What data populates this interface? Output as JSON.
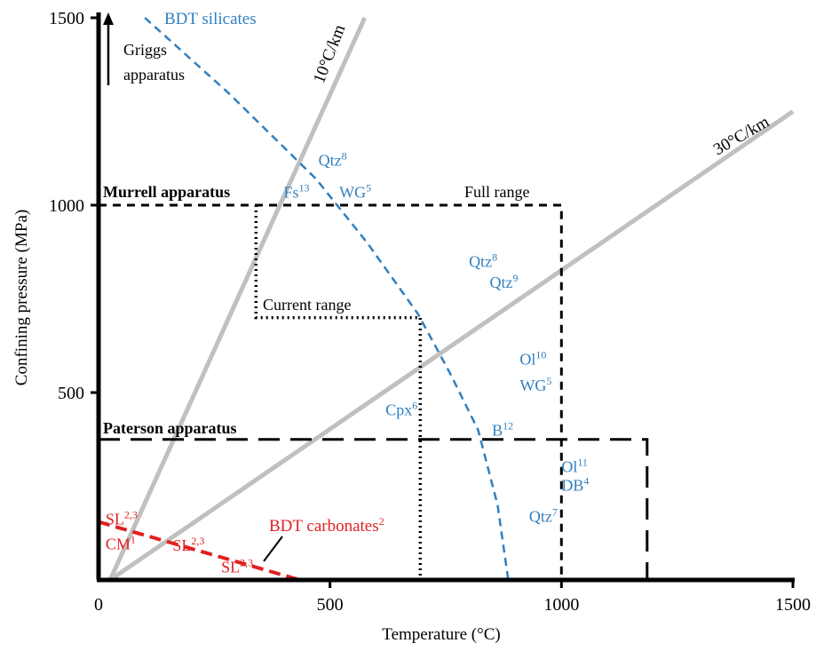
{
  "chart_data": {
    "type": "line",
    "xlabel": "Temperature (°C)",
    "ylabel": "Confining pressure (MPa)",
    "xlim": [
      0,
      1500
    ],
    "ylim": [
      0,
      1500
    ],
    "x_ticks": [
      "0",
      "500",
      "1000",
      "1500"
    ],
    "y_ticks": [
      "500",
      "1000",
      "1500"
    ],
    "colors": {
      "geotherm": "#c0c0c0",
      "silicates": "#2f7fc0",
      "carbonates": "#e02020",
      "apparatus": "#000000"
    },
    "geotherms": [
      {
        "name": "10°C/km",
        "points": [
          [
            25,
            0
          ],
          [
            575,
            1500
          ]
        ]
      },
      {
        "name": "30°C/km",
        "points": [
          [
            25,
            0
          ],
          [
            1500,
            1250
          ]
        ]
      }
    ],
    "bdt_silicates": {
      "name": "BDT silicates",
      "points": [
        [
          100,
          1500
        ],
        [
          280,
          1300
        ],
        [
          470,
          1070
        ],
        [
          580,
          900
        ],
        [
          690,
          710
        ],
        [
          760,
          550
        ],
        [
          820,
          400
        ],
        [
          862,
          200
        ],
        [
          885,
          0
        ]
      ]
    },
    "bdt_carbonates": {
      "name": "BDT carbonates",
      "sup": "2",
      "points": [
        [
          0,
          155
        ],
        [
          435,
          0
        ]
      ]
    },
    "griggs": {
      "label_line1": "Griggs",
      "label_line2": "apparatus"
    },
    "murrell": {
      "name": "Murrell apparatus",
      "full_range_label": "Full range",
      "current_range_label": "Current range",
      "full_range": {
        "t_max": 1000,
        "p_max": 1000
      },
      "current_range": {
        "t_min": 340,
        "t_max": 695,
        "p_min": 700,
        "p_max": 1000
      }
    },
    "paterson": {
      "name": "Paterson apparatus",
      "t_max": 1185,
      "p_max": 375
    },
    "annotations": [
      {
        "id": "qtz8a",
        "text": "Qtz",
        "sup": "8",
        "x": 475,
        "y": 1105,
        "color": "#2f7fc0"
      },
      {
        "id": "fs13",
        "text": "Fs",
        "sup": "13",
        "x": 400,
        "y": 1020,
        "color": "#2f7fc0"
      },
      {
        "id": "wg5a",
        "text": "WG",
        "sup": "5",
        "x": 520,
        "y": 1020,
        "color": "#2f7fc0"
      },
      {
        "id": "qtz8b",
        "text": "Qtz",
        "sup": "8",
        "x": 800,
        "y": 835,
        "color": "#2f7fc0"
      },
      {
        "id": "qtz9",
        "text": "Qtz",
        "sup": "9",
        "x": 845,
        "y": 780,
        "color": "#2f7fc0"
      },
      {
        "id": "ol10",
        "text": "Ol",
        "sup": "10",
        "x": 910,
        "y": 575,
        "color": "#2f7fc0"
      },
      {
        "id": "wg5b",
        "text": "WG",
        "sup": "5",
        "x": 910,
        "y": 505,
        "color": "#2f7fc0"
      },
      {
        "id": "cpx6",
        "text": "Cpx",
        "sup": "6",
        "x": 620,
        "y": 440,
        "color": "#2f7fc0"
      },
      {
        "id": "b12",
        "text": "B",
        "sup": "12",
        "x": 850,
        "y": 385,
        "color": "#2f7fc0"
      },
      {
        "id": "ol11",
        "text": "Ol",
        "sup": "11",
        "x": 1000,
        "y": 288,
        "color": "#2f7fc0"
      },
      {
        "id": "db4",
        "text": "DB",
        "sup": "4",
        "x": 1000,
        "y": 238,
        "color": "#2f7fc0"
      },
      {
        "id": "qtz7",
        "text": "Qtz",
        "sup": "7",
        "x": 930,
        "y": 155,
        "color": "#2f7fc0"
      },
      {
        "id": "sl23a",
        "text": "SL",
        "sup": "2,3",
        "x": 15,
        "y": 148,
        "color": "#e02020"
      },
      {
        "id": "cm1",
        "text": "CM",
        "sup": "1",
        "x": 15,
        "y": 82,
        "color": "#e02020"
      },
      {
        "id": "sl23b",
        "text": "SL",
        "sup": "2,3",
        "x": 160,
        "y": 78,
        "color": "#e02020"
      },
      {
        "id": "sl23c",
        "text": "SL",
        "sup": "2,3",
        "x": 265,
        "y": 20,
        "color": "#e02020"
      }
    ]
  }
}
